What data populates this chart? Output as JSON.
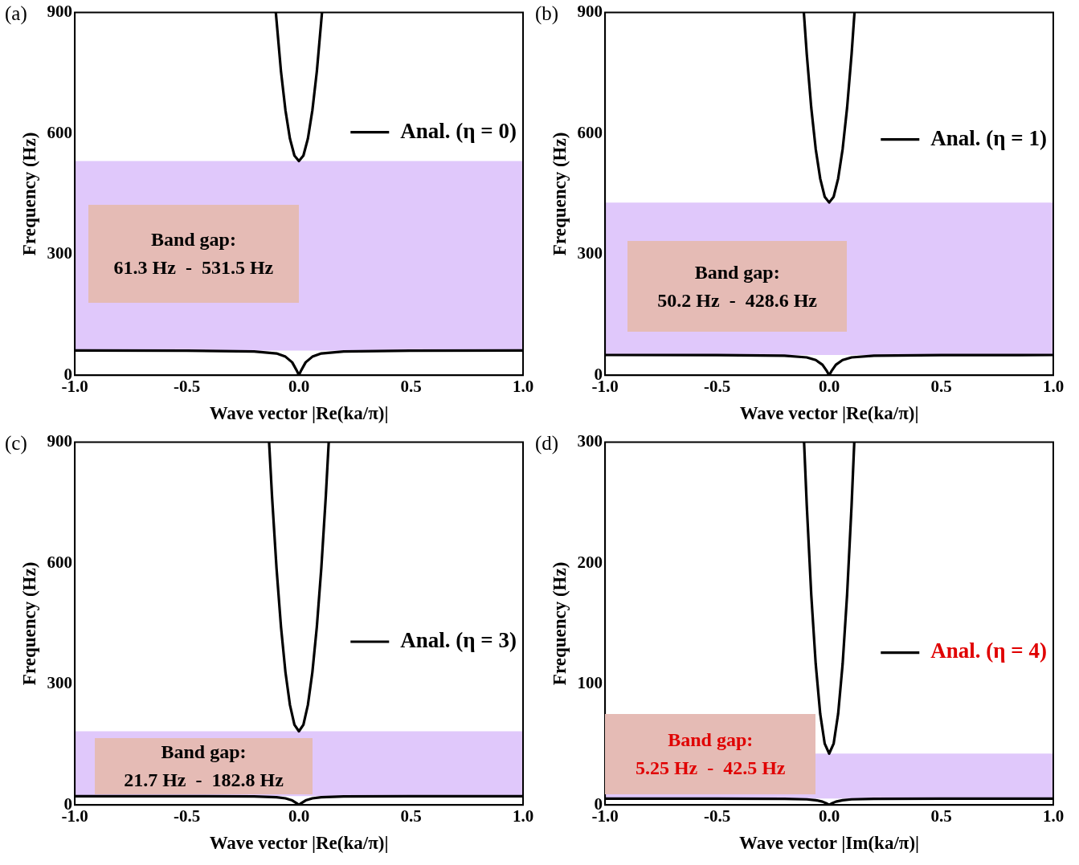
{
  "chart_data": [
    {
      "type": "line",
      "title": "(a)",
      "xlabel": "Wave vector |Re(ka/π)|",
      "ylabel": "Frequency (Hz)",
      "xlim": [
        -1,
        1
      ],
      "xticks": [
        {
          "value": -1,
          "label": "-1.0"
        },
        {
          "value": -0.5,
          "label": "-0.5"
        },
        {
          "value": 0,
          "label": "0.0"
        },
        {
          "value": 0.5,
          "label": "0.5"
        },
        {
          "value": 1,
          "label": "1.0"
        }
      ],
      "ylim": [
        0,
        900
      ],
      "yticks": [
        0,
        300,
        600,
        900
      ],
      "legend": "right",
      "series": [
        {
          "name": "Anal. (η = 0)",
          "color": "#000000",
          "x": [
            -1,
            -0.5,
            -0.2,
            -0.1,
            -0.06,
            -0.03,
            -0.01,
            0,
            0.01,
            0.03,
            0.06,
            0.1,
            0.2,
            0.5,
            1,
            0,
            -0.103,
            -0.08,
            -0.06,
            -0.04,
            -0.02,
            0,
            0.02,
            0.04,
            0.06,
            0.08,
            0.103
          ],
          "values": [
            61.3,
            61,
            59,
            54,
            46,
            32,
            12,
            0,
            12,
            32,
            46,
            54,
            59,
            61,
            61.3,
            null,
            900,
            754,
            657,
            587,
            545,
            531.5,
            545,
            587,
            657,
            754,
            900
          ]
        }
      ],
      "bands": [
        {
          "axis": "y",
          "from": 61.3,
          "to": 531.5,
          "color": "#e0c8fb",
          "label": "Band gap:\n61.3 Hz  -  531.5 Hz"
        }
      ]
    },
    {
      "type": "line",
      "title": "(b)",
      "xlabel": "Wave vector |Re(ka/π)|",
      "ylabel": "Frequency (Hz)",
      "xlim": [
        -1,
        1
      ],
      "xticks": [
        {
          "value": -1,
          "label": "-1.0"
        },
        {
          "value": -0.5,
          "label": "-0.5"
        },
        {
          "value": 0,
          "label": "0.0"
        },
        {
          "value": 0.5,
          "label": "0.5"
        },
        {
          "value": 1,
          "label": "1.0"
        }
      ],
      "ylim": [
        0,
        900
      ],
      "yticks": [
        0,
        300,
        600,
        900
      ],
      "legend": "right",
      "series": [
        {
          "name": "Anal. (η = 1)",
          "color": "#000000",
          "x": [
            -1,
            -0.5,
            -0.2,
            -0.1,
            -0.06,
            -0.03,
            -0.01,
            0,
            0.01,
            0.03,
            0.06,
            0.1,
            0.2,
            0.5,
            1,
            0,
            -0.113,
            -0.1,
            -0.08,
            -0.06,
            -0.04,
            -0.02,
            0,
            0.02,
            0.04,
            0.06,
            0.08,
            0.1,
            0.113
          ],
          "values": [
            50.2,
            50,
            48.3,
            44.2,
            37.7,
            26.1,
            10,
            0,
            10,
            26.1,
            37.7,
            44.2,
            48.3,
            50,
            50.2,
            null,
            900,
            797,
            664,
            561,
            488,
            443,
            428.6,
            443,
            488,
            561,
            664,
            797,
            900
          ]
        }
      ],
      "bands": [
        {
          "axis": "y",
          "from": 50.2,
          "to": 428.6,
          "color": "#e0c8fb",
          "label": "Band gap:\n50.2 Hz  -  428.6 Hz"
        }
      ]
    },
    {
      "type": "line",
      "title": "(c)",
      "xlabel": "Wave vector |Re(ka/π)|",
      "ylabel": "Frequency (Hz)",
      "xlim": [
        -1,
        1
      ],
      "xticks": [
        {
          "value": -1,
          "label": "-1.0"
        },
        {
          "value": -0.5,
          "label": "-0.5"
        },
        {
          "value": 0,
          "label": "0.0"
        },
        {
          "value": 0.5,
          "label": "0.5"
        },
        {
          "value": 1,
          "label": "1.0"
        }
      ],
      "ylim": [
        0,
        900
      ],
      "yticks": [
        0,
        300,
        600,
        900
      ],
      "legend": "right",
      "series": [
        {
          "name": "Anal. (η = 3)",
          "color": "#000000",
          "x": [
            -1,
            -0.5,
            -0.2,
            -0.1,
            -0.06,
            -0.03,
            -0.01,
            0,
            0.01,
            0.03,
            0.06,
            0.1,
            0.2,
            0.5,
            1,
            0,
            -0.133,
            -0.12,
            -0.1,
            -0.08,
            -0.06,
            -0.04,
            -0.02,
            0,
            0.02,
            0.04,
            0.06,
            0.08,
            0.1,
            0.12,
            0.133
          ],
          "values": [
            21.7,
            21.6,
            20.9,
            19.1,
            16.3,
            11.3,
            4.3,
            0,
            4.3,
            11.3,
            16.3,
            19.1,
            20.9,
            21.6,
            21.7,
            null,
            900,
            766,
            588,
            442,
            329,
            248,
            199,
            182.8,
            199,
            248,
            329,
            442,
            588,
            766,
            900
          ]
        }
      ],
      "bands": [
        {
          "axis": "y",
          "from": 21.7,
          "to": 182.8,
          "color": "#e0c8fb",
          "label": "Band gap:\n21.7 Hz  -  182.8 Hz"
        }
      ]
    },
    {
      "type": "line",
      "title": "(d)",
      "xlabel": "Wave vector |Im(ka/π)|",
      "ylabel": "Frequency (Hz)",
      "xlim": [
        -1,
        1
      ],
      "xticks": [
        {
          "value": -1,
          "label": "-1.0"
        },
        {
          "value": -0.5,
          "label": "-0.5"
        },
        {
          "value": 0,
          "label": "0.0"
        },
        {
          "value": 0.5,
          "label": "0.5"
        },
        {
          "value": 1,
          "label": "1.0"
        }
      ],
      "ylim": [
        0,
        300
      ],
      "yticks": [
        0,
        100,
        200,
        300
      ],
      "legend": "right",
      "series": [
        {
          "name": "Anal. (η = 4)",
          "color": "#000000",
          "x": [
            -1,
            -0.5,
            -0.2,
            -0.1,
            -0.06,
            -0.03,
            -0.01,
            0,
            0.01,
            0.03,
            0.06,
            0.1,
            0.2,
            0.5,
            1,
            0,
            -0.112,
            -0.1,
            -0.08,
            -0.06,
            -0.04,
            -0.02,
            0,
            0.02,
            0.04,
            0.06,
            0.08,
            0.1,
            0.112
          ],
          "values": [
            5.25,
            5.2,
            5.05,
            4.6,
            3.9,
            2.7,
            1.1,
            0,
            1.1,
            2.7,
            3.9,
            4.6,
            5.05,
            5.2,
            5.25,
            null,
            300,
            247.8,
            173.9,
            116.4,
            75.3,
            50.7,
            42.5,
            50.7,
            75.3,
            116.4,
            173.9,
            247.8,
            300
          ]
        }
      ],
      "bands": [
        {
          "axis": "y",
          "from": 5.25,
          "to": 42.5,
          "color": "#e0c8fb",
          "label": "Band gap:\n5.25 Hz  -  42.5 Hz"
        }
      ]
    }
  ]
}
